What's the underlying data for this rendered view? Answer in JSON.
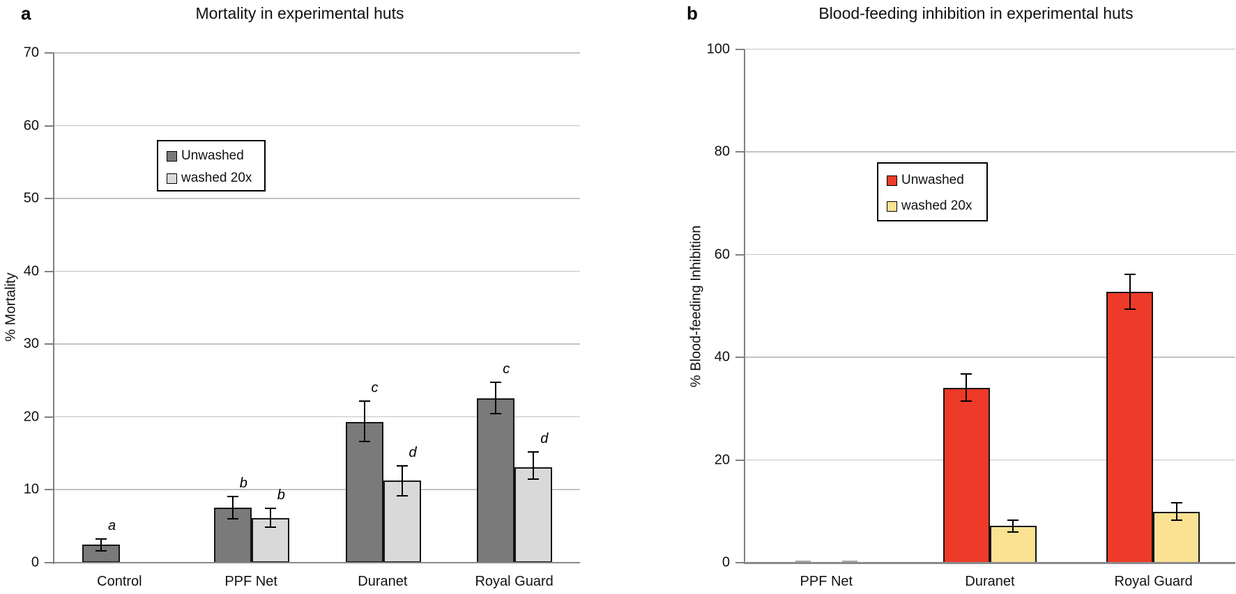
{
  "figure_type": "two-panel grouped bar chart figure",
  "panel_labels": {
    "a": "a",
    "b": "b"
  },
  "chart_data": [
    {
      "type": "bar",
      "panel_label": "a",
      "title": "Mortality in experimental huts",
      "xlabel": "",
      "ylabel": "% Mortality",
      "ylim": [
        0,
        70
      ],
      "ytick_step": 10,
      "grid": true,
      "legend_position": "inside-upper-left",
      "categories": [
        "Control",
        "PPF Net",
        "Duranet",
        "Royal Guard"
      ],
      "series": [
        {
          "name": "Unwashed",
          "color": "#7a7a7a",
          "values": [
            2.4,
            7.5,
            19.3,
            22.5
          ],
          "err_plus": [
            0.8,
            1.5,
            2.9,
            2.2
          ],
          "err_minus": [
            0.8,
            1.5,
            2.7,
            2.1
          ],
          "letters": [
            "a",
            "b",
            "c",
            "c"
          ]
        },
        {
          "name": "washed 20x",
          "color": "#d9d9d9",
          "values": [
            null,
            6.1,
            11.2,
            13.1
          ],
          "err_plus": [
            null,
            1.3,
            2.1,
            2.1
          ],
          "err_minus": [
            null,
            1.3,
            2.1,
            1.7
          ],
          "letters": [
            null,
            "b",
            "d",
            "d"
          ]
        }
      ]
    },
    {
      "type": "bar",
      "panel_label": "b",
      "title": "Blood-feeding inhibition in experimental huts",
      "xlabel": "",
      "ylabel": "% Blood-feeding Inhibition",
      "ylim": [
        0,
        100
      ],
      "ytick_step": 20,
      "grid": true,
      "legend_position": "inside-upper-left",
      "categories": [
        "PPF Net",
        "Duranet",
        "Royal Guard"
      ],
      "series": [
        {
          "name": "Unwashed",
          "color": "#ee3a28",
          "values": [
            0.2,
            34.0,
            52.8
          ],
          "err_plus": [
            null,
            2.8,
            3.4
          ],
          "err_minus": [
            null,
            2.6,
            3.4
          ],
          "letters": [
            null,
            null,
            null
          ]
        },
        {
          "name": "washed 20x",
          "color": "#fbe293",
          "values": [
            0.2,
            7.2,
            9.9
          ],
          "err_plus": [
            null,
            1.1,
            1.8
          ],
          "err_minus": [
            null,
            1.2,
            1.6
          ],
          "letters": [
            null,
            null,
            null
          ]
        }
      ]
    }
  ],
  "style_colors": {
    "gridline": "#c3c3c3",
    "axis": "#808080",
    "error_bar": "#000000",
    "bar_outline": "#151515",
    "near_zero_nub": "#a9a9a9"
  }
}
